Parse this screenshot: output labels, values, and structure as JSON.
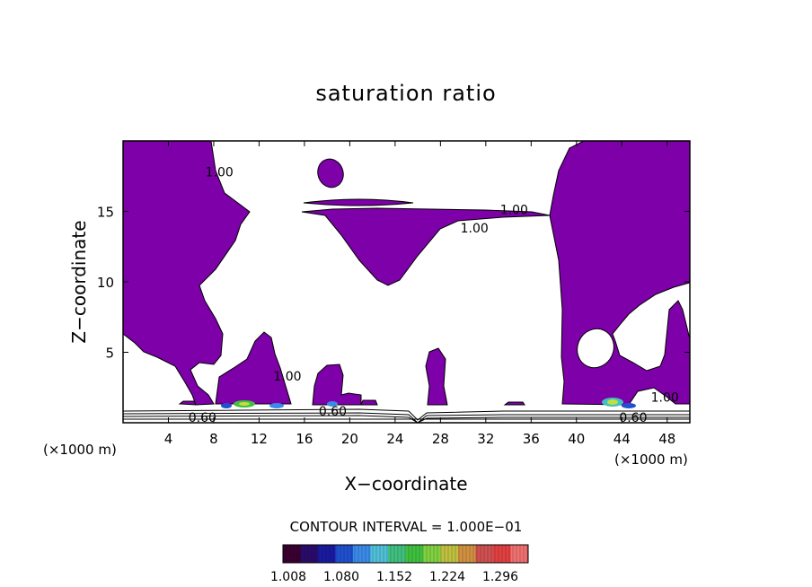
{
  "chart_data": {
    "type": "contour",
    "title": "saturation ratio",
    "xlabel": "X−coordinate",
    "ylabel": "Z−coordinate",
    "x_unit": "(×1000 m)",
    "x_unit_right": "(×1000 m)",
    "xlim": [
      0,
      50
    ],
    "ylim": [
      0,
      20
    ],
    "x_ticks": [
      4,
      8,
      12,
      16,
      20,
      24,
      28,
      32,
      36,
      40,
      44,
      48
    ],
    "y_ticks": [
      5,
      10,
      15
    ],
    "contour_labels": [
      {
        "text": "1.00",
        "x": 8.5,
        "y": 17.5
      },
      {
        "text": "1.00",
        "x": 34.5,
        "y": 14.8
      },
      {
        "text": "1.00",
        "x": 31.0,
        "y": 13.5
      },
      {
        "text": "1.00",
        "x": 14.5,
        "y": 3.0
      },
      {
        "text": "1.00",
        "x": 47.8,
        "y": 1.5
      },
      {
        "text": "0.60",
        "x": 7.0,
        "y": 0.05
      },
      {
        "text": "0.60",
        "x": 18.5,
        "y": 0.5
      },
      {
        "text": "0.60",
        "x": 45.0,
        "y": 0.05
      }
    ],
    "contour_interval_label": "CONTOUR INTERVAL = 1.000E−01",
    "colorbar": {
      "tick_labels": [
        "1.008",
        "1.080",
        "1.152",
        "1.224",
        "1.296"
      ],
      "colors": [
        "#3a0030",
        "#2a0b6b",
        "#1a1aa0",
        "#2050d0",
        "#3a8ae6",
        "#50c0d8",
        "#40c080",
        "#40c040",
        "#80d040",
        "#c0c040",
        "#d09040",
        "#d05050",
        "#e04040",
        "#f07070"
      ]
    },
    "fill_color": "#7d00a8"
  }
}
